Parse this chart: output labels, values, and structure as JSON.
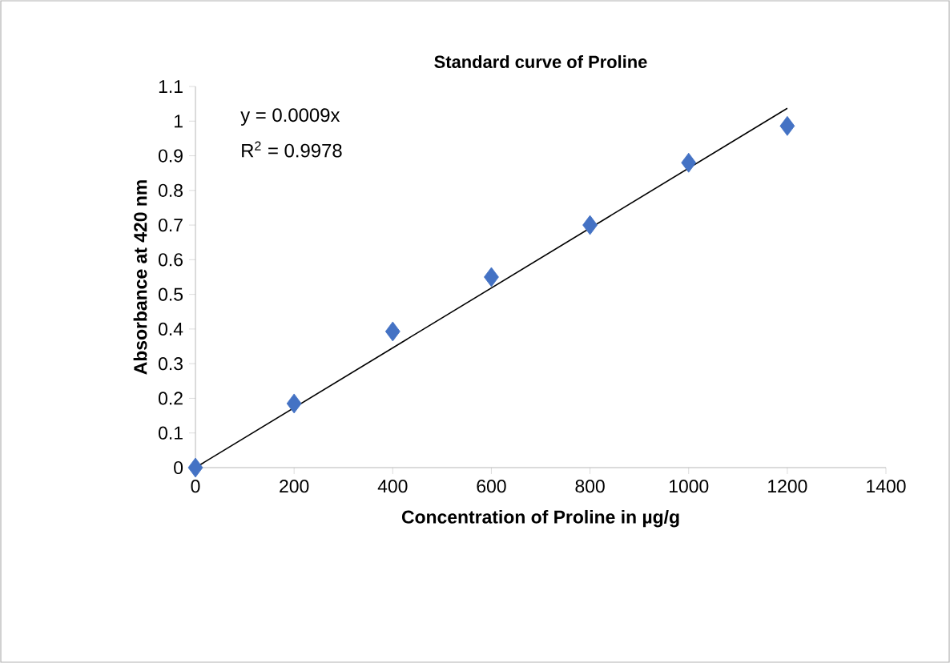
{
  "chart_data": {
    "type": "scatter",
    "title": "Standard curve of Proline",
    "xlabel": "Concentration of Proline in µg/g",
    "ylabel": "Absorbance at 420 nm",
    "annotations": [
      "y = 0.0009x",
      "R$^{2}$ = 0.9978"
    ],
    "x": [
      0,
      200,
      400,
      600,
      800,
      1000,
      1200
    ],
    "series": [
      {
        "color": "#4472c4",
        "marker": "diamond",
        "values": [
          0,
          0.185,
          0.393,
          0.55,
          0.7,
          0.88,
          0.986
        ]
      },
      {
        "type": "line",
        "color": "#000000",
        "marker": "none",
        "line_style": "solid",
        "x": [
          0,
          1200
        ],
        "values": [
          0,
          1.037
        ]
      }
    ],
    "xlim": [
      0,
      1400
    ],
    "ylim": [
      0,
      1.1
    ],
    "xticks": [
      0,
      200,
      400,
      600,
      800,
      1000,
      1200,
      1400
    ],
    "yticks": [
      0,
      0.1,
      0.2,
      0.3,
      0.4,
      0.5,
      0.6,
      0.7,
      0.8,
      0.9,
      1,
      1.1
    ],
    "grid": false
  }
}
